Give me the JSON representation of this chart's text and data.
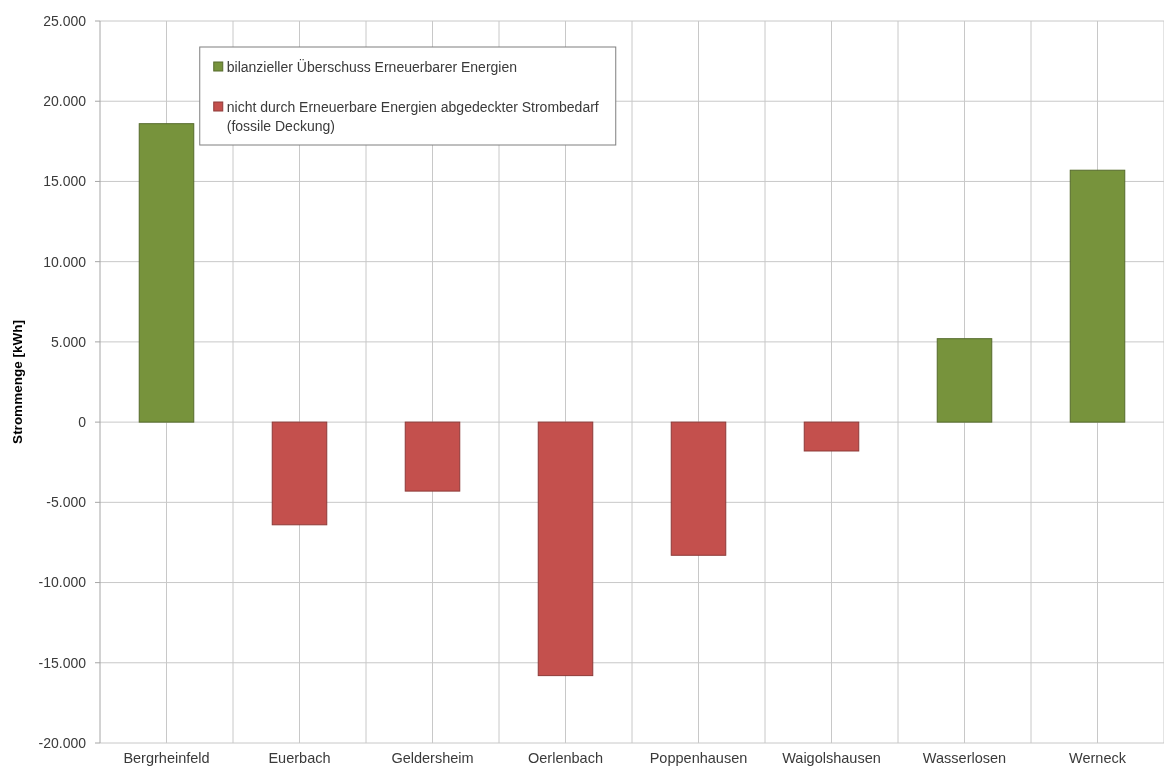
{
  "chart_data": {
    "type": "bar",
    "ylabel": "Strommenge [kWh]",
    "categories": [
      "Bergrheinfeld",
      "Euerbach",
      "Geldersheim",
      "Oerlenbach",
      "Poppenhausen",
      "Waigolshausen",
      "Wasserlosen",
      "Werneck"
    ],
    "series": [
      {
        "name": "bilanzieller Überschuss Erneuerbarer Energien",
        "color": "#77933c",
        "values": [
          18600,
          null,
          null,
          null,
          null,
          null,
          5200,
          15700
        ]
      },
      {
        "name": "nicht durch Erneuerbare Energien abgedeckter Strombedarf (fossile Deckung)",
        "color": "#c4504d",
        "values": [
          null,
          -6400,
          -4300,
          -15800,
          -8300,
          -1800,
          null,
          null
        ]
      }
    ],
    "stacked": true,
    "ylim": [
      -20000,
      25000
    ],
    "yticks": [
      {
        "value": -20000,
        "label": "-20.000"
      },
      {
        "value": -15000,
        "label": "-15.000"
      },
      {
        "value": -10000,
        "label": "-10.000"
      },
      {
        "value": -5000,
        "label": "-5.000"
      },
      0,
      {
        "value": 5000,
        "label": "5.000"
      },
      {
        "value": 10000,
        "label": "10.000"
      },
      {
        "value": 15000,
        "label": "15.000"
      },
      {
        "value": 20000,
        "label": "20.000"
      },
      {
        "value": 25000,
        "label": "25.000"
      }
    ],
    "grid": true,
    "legend": "top left"
  }
}
